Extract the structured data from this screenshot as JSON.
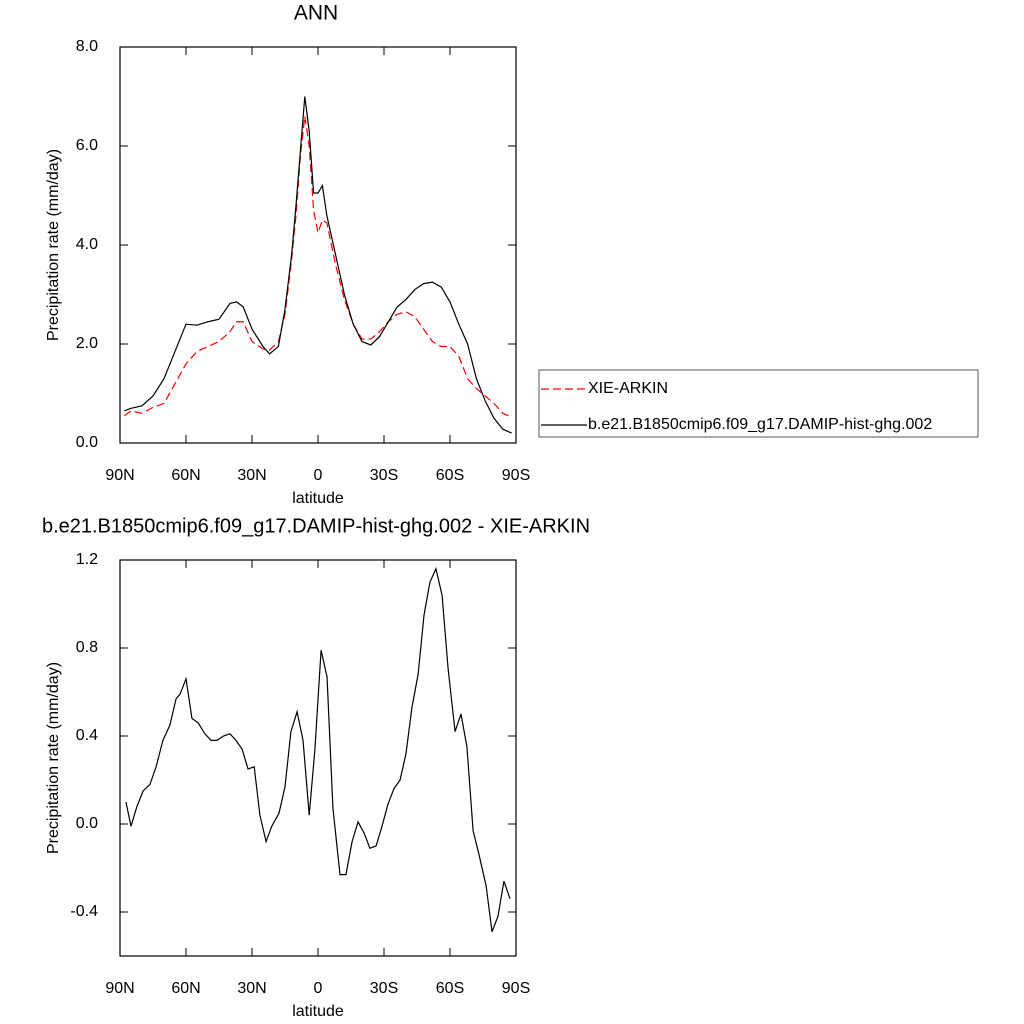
{
  "chart_data": [
    {
      "type": "line",
      "title": "ANN",
      "xlabel": "latitude",
      "ylabel": "Precipitation rate (mm/day)",
      "x": [
        88,
        85,
        80,
        75,
        70,
        65,
        60,
        55,
        50,
        45,
        40,
        37,
        34,
        30,
        25,
        22,
        18,
        15,
        12,
        10,
        8,
        6,
        4,
        2,
        0,
        -2,
        -4,
        -8,
        -12,
        -16,
        -20,
        -24,
        -28,
        -32,
        -36,
        -40,
        -44,
        -48,
        -52,
        -56,
        -60,
        -64,
        -68,
        -72,
        -76,
        -80,
        -84,
        -88
      ],
      "series": [
        {
          "name": "XIE-ARKIN",
          "color": "#ff0000",
          "dash": true,
          "values": [
            0.55,
            0.65,
            0.6,
            0.72,
            0.8,
            1.2,
            1.6,
            1.85,
            1.95,
            2.05,
            2.25,
            2.45,
            2.45,
            2.05,
            1.9,
            1.88,
            2.05,
            2.6,
            3.7,
            4.6,
            5.8,
            6.6,
            6.0,
            4.7,
            4.25,
            4.5,
            4.45,
            3.6,
            2.9,
            2.4,
            2.1,
            2.1,
            2.25,
            2.45,
            2.6,
            2.65,
            2.55,
            2.3,
            2.05,
            1.95,
            1.95,
            1.75,
            1.3,
            1.1,
            0.95,
            0.8,
            0.6,
            0.52
          ]
        },
        {
          "name": "b.e21.B1850cmip6.f09_g17.DAMIP-hist-ghg.002",
          "color": "#000000",
          "dash": false,
          "values": [
            0.65,
            0.7,
            0.75,
            0.95,
            1.3,
            1.85,
            2.4,
            2.38,
            2.45,
            2.5,
            2.82,
            2.85,
            2.75,
            2.3,
            1.95,
            1.8,
            1.95,
            2.7,
            3.8,
            4.8,
            5.9,
            7.0,
            6.3,
            5.05,
            5.05,
            5.2,
            4.6,
            3.8,
            3.0,
            2.4,
            2.05,
            1.98,
            2.15,
            2.45,
            2.75,
            2.9,
            3.1,
            3.22,
            3.25,
            3.15,
            2.85,
            2.4,
            2.0,
            1.3,
            0.85,
            0.5,
            0.28,
            0.2
          ]
        }
      ],
      "xlim": [
        90,
        -90
      ],
      "xticks": [
        {
          "value": 90,
          "label": "90N"
        },
        {
          "value": 60,
          "label": "60N"
        },
        {
          "value": 30,
          "label": "30N"
        },
        0,
        {
          "value": -30,
          "label": "30S"
        },
        {
          "value": -60,
          "label": "60S"
        },
        {
          "value": -90,
          "label": "90S"
        }
      ],
      "ylim": [
        0,
        8
      ],
      "yticks": [
        {
          "value": 0,
          "label": "0.0"
        },
        {
          "value": 2,
          "label": "2.0"
        },
        {
          "value": 4,
          "label": "4.0"
        },
        {
          "value": 6,
          "label": "6.0"
        },
        {
          "value": 8,
          "label": "8.0"
        }
      ],
      "legend": "outside-right"
    },
    {
      "type": "line",
      "title": "b.e21.B1850cmip6.f09_g17.DAMIP-hist-ghg.002 - XIE-ARKIN",
      "xlabel": "latitude",
      "ylabel": "Precipitation rate (mm/day)",
      "x": [
        87.3,
        85,
        82.3,
        79.5,
        76.4,
        73.6,
        70.5,
        67.3,
        64.5,
        62.7,
        60,
        57.3,
        54.5,
        51.4,
        48.6,
        45.9,
        43,
        40,
        37.3,
        34.5,
        31.8,
        29,
        26.4,
        23.6,
        21,
        17.7,
        15,
        12.3,
        9.5,
        6.8,
        4,
        1.4,
        -1.4,
        -4.1,
        -6.8,
        -10,
        -12.7,
        -15.5,
        -18.2,
        -20.9,
        -23.6,
        -26.4,
        -29.1,
        -31.8,
        -34.5,
        -37.3,
        -40,
        -42.7,
        -45.5,
        -48.2,
        -50.9,
        -53.6,
        -56.4,
        -59.1,
        -62.3,
        -65,
        -67.7,
        -70.5,
        -73.2,
        -76.4,
        -79.1,
        -81.8,
        -84.5,
        -87.3
      ],
      "series": [
        {
          "color": "#000000",
          "dash": false,
          "values": [
            0.1,
            -0.01,
            0.08,
            0.15,
            0.18,
            0.26,
            0.38,
            0.45,
            0.57,
            0.59,
            0.66,
            0.48,
            0.46,
            0.41,
            0.38,
            0.38,
            0.4,
            0.41,
            0.38,
            0.34,
            0.25,
            0.26,
            0.04,
            -0.08,
            -0.01,
            0.05,
            0.17,
            0.42,
            0.51,
            0.38,
            0.04,
            0.34,
            0.79,
            0.67,
            0.07,
            -0.23,
            -0.23,
            -0.08,
            0.01,
            -0.04,
            -0.11,
            -0.1,
            -0.01,
            0.09,
            0.16,
            0.2,
            0.32,
            0.53,
            0.68,
            0.95,
            1.1,
            1.16,
            1.04,
            0.71,
            0.42,
            0.5,
            0.35,
            -0.03,
            -0.14,
            -0.28,
            -0.49,
            -0.42,
            -0.26,
            -0.34
          ]
        }
      ],
      "xlim": [
        90,
        -90
      ],
      "xticks": [
        {
          "value": 90,
          "label": "90N"
        },
        {
          "value": 60,
          "label": "60N"
        },
        {
          "value": 30,
          "label": "30N"
        },
        0,
        {
          "value": -30,
          "label": "30S"
        },
        {
          "value": -60,
          "label": "60S"
        },
        {
          "value": -90,
          "label": "90S"
        }
      ],
      "ylim": [
        -0.6,
        1.2
      ],
      "yticks": [
        -0.4,
        {
          "value": 0,
          "label": "0.0"
        },
        0.4,
        0.8,
        1.2
      ]
    }
  ]
}
